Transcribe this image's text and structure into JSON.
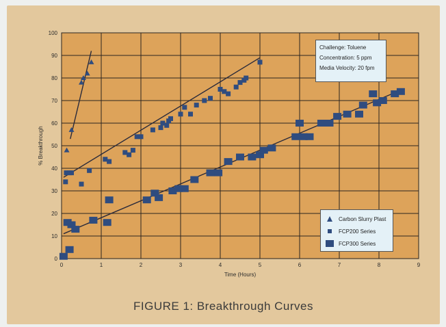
{
  "caption": "FIGURE 1: Breakthrough Curves",
  "info_box": {
    "line1": "Challenge: Toluene",
    "line2": "Concentration: 5 ppm",
    "line3": "Media Velocity: 20 fpm"
  },
  "legend": {
    "items": [
      {
        "label": "Carbon Slurry Plast",
        "marker": "triangle"
      },
      {
        "label": "FCP200 Series",
        "marker": "small-square"
      },
      {
        "label": "FCP300 Series",
        "marker": "large-square"
      }
    ]
  },
  "colors": {
    "background": "#e3c89d",
    "plot_background": "#dda35a",
    "grid": "#2b2420",
    "marker": "#2f4c7f",
    "box_fill": "#e4f1f7"
  },
  "chart_data": {
    "type": "scatter",
    "title": "",
    "xlabel": "Time (Hours)",
    "ylabel": "% Breakthrough",
    "xlim": [
      0,
      9
    ],
    "ylim": [
      0,
      100
    ],
    "xticks": [
      "0",
      "1",
      "2",
      "3",
      "4",
      "5",
      "6",
      "7",
      "8",
      "9"
    ],
    "yticks": [
      "0",
      "10",
      "20",
      "30",
      "40",
      "50",
      "60",
      "70",
      "80",
      "90",
      "100"
    ],
    "grid": true,
    "legend_position": "bottom-right",
    "series": [
      {
        "name": "Carbon Slurry Plast",
        "marker": "triangle",
        "points": [
          [
            0.13,
            48
          ],
          [
            0.25,
            57
          ],
          [
            0.5,
            78
          ],
          [
            0.55,
            80
          ],
          [
            0.65,
            82
          ],
          [
            0.75,
            87
          ]
        ],
        "fit_line": [
          [
            0.22,
            53
          ],
          [
            0.75,
            92
          ]
        ]
      },
      {
        "name": "FCP200 Series",
        "marker": "small-square",
        "points": [
          [
            0.1,
            34
          ],
          [
            0.12,
            38
          ],
          [
            0.2,
            38
          ],
          [
            0.25,
            38
          ],
          [
            0.5,
            33
          ],
          [
            0.7,
            39
          ],
          [
            1.1,
            44
          ],
          [
            1.2,
            43
          ],
          [
            1.6,
            47
          ],
          [
            1.7,
            46
          ],
          [
            1.8,
            48
          ],
          [
            1.9,
            54
          ],
          [
            2.0,
            54
          ],
          [
            2.3,
            57
          ],
          [
            2.5,
            58
          ],
          [
            2.55,
            60
          ],
          [
            2.65,
            59
          ],
          [
            2.7,
            61
          ],
          [
            2.75,
            62
          ],
          [
            3.0,
            64
          ],
          [
            3.1,
            67
          ],
          [
            3.25,
            64
          ],
          [
            3.4,
            68
          ],
          [
            3.6,
            70
          ],
          [
            3.75,
            71
          ],
          [
            4.0,
            75
          ],
          [
            4.1,
            74
          ],
          [
            4.2,
            73
          ],
          [
            4.4,
            76
          ],
          [
            4.5,
            78
          ],
          [
            4.6,
            79
          ],
          [
            4.65,
            80
          ],
          [
            5.0,
            87
          ]
        ],
        "fit_line": [
          [
            0.05,
            36
          ],
          [
            5.0,
            89
          ]
        ]
      },
      {
        "name": "FCP300 Series",
        "marker": "large-square",
        "points": [
          [
            0.05,
            1
          ],
          [
            0.15,
            16
          ],
          [
            0.2,
            4
          ],
          [
            0.25,
            15
          ],
          [
            0.35,
            13
          ],
          [
            0.8,
            17
          ],
          [
            1.15,
            16
          ],
          [
            1.2,
            26
          ],
          [
            2.15,
            26
          ],
          [
            2.35,
            29
          ],
          [
            2.45,
            27
          ],
          [
            2.8,
            30
          ],
          [
            2.95,
            31
          ],
          [
            3.1,
            31
          ],
          [
            3.35,
            35
          ],
          [
            3.75,
            38
          ],
          [
            3.95,
            38
          ],
          [
            4.2,
            43
          ],
          [
            4.5,
            45
          ],
          [
            4.8,
            45
          ],
          [
            5.0,
            46
          ],
          [
            5.1,
            48
          ],
          [
            5.3,
            49
          ],
          [
            5.9,
            54
          ],
          [
            6.0,
            60
          ],
          [
            6.1,
            54
          ],
          [
            6.25,
            54
          ],
          [
            6.55,
            60
          ],
          [
            6.75,
            60
          ],
          [
            6.95,
            63
          ],
          [
            7.2,
            64
          ],
          [
            7.5,
            64
          ],
          [
            7.6,
            68
          ],
          [
            7.85,
            73
          ],
          [
            7.95,
            69
          ],
          [
            8.1,
            70
          ],
          [
            8.4,
            73
          ],
          [
            8.55,
            74
          ]
        ],
        "fit_line": [
          [
            0.05,
            11
          ],
          [
            8.6,
            75
          ]
        ]
      }
    ]
  }
}
